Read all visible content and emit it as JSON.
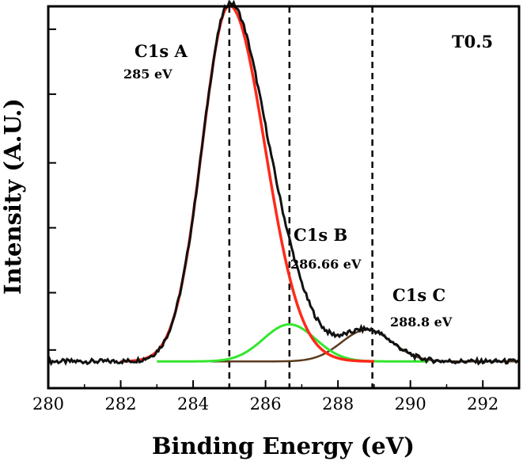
{
  "chart_data": {
    "type": "line",
    "title": "",
    "sample_label": "T0.5",
    "xlabel": "Binding Energy (eV)",
    "ylabel": "Intensity (A.U.)",
    "xlim": [
      280,
      293
    ],
    "ylim": [
      0,
      1.0
    ],
    "xticks": [
      280,
      282,
      284,
      286,
      288,
      290,
      292
    ],
    "yticks_unlabeled": [
      0.1,
      0.25,
      0.42,
      0.59,
      0.77,
      0.94
    ],
    "baseline": 0.07,
    "noise_amplitude": 0.006,
    "components": [
      {
        "name": "C1s A",
        "center": 285.0,
        "height": 0.932,
        "sigma_left": 0.75,
        "sigma_right": 0.98,
        "color": "#ff2a1a"
      },
      {
        "name": "C1s B",
        "center": 286.66,
        "height": 0.097,
        "sigma": 0.72,
        "color": "#33e62e"
      },
      {
        "name": "C1s C",
        "center": 288.8,
        "height": 0.083,
        "sigma": 0.7,
        "color": "#5a3a1e"
      }
    ],
    "envelope_color": "#111111",
    "reference_lines_ev": [
      285.0,
      286.66,
      288.95
    ],
    "annotations": [
      {
        "label": "C1s A",
        "value": "285 eV"
      },
      {
        "label": "C1s B",
        "value": "286.66 eV"
      },
      {
        "label": "C1s C",
        "value": "288.8 eV"
      }
    ]
  }
}
